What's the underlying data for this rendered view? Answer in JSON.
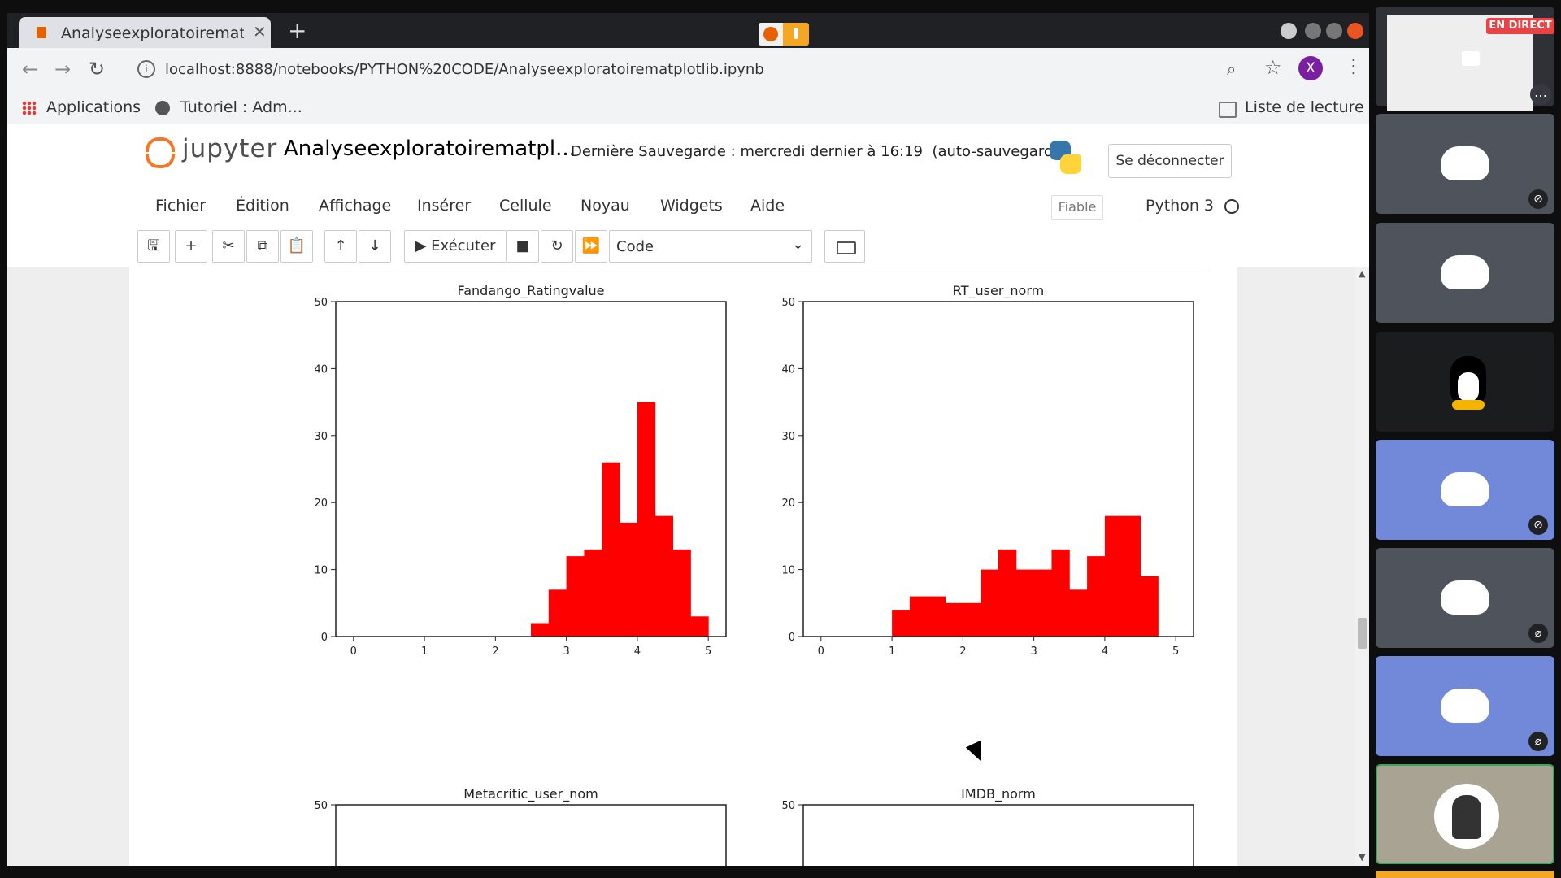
{
  "browser": {
    "tab_title": "Analyseexploratoirematp",
    "url": "localhost:8888/notebooks/PYTHON%20CODE/Analyseexploratoirematplotlib.ipynb",
    "bookmarks": {
      "apps": "Applications",
      "tutorial": "Tutoriel : Adm..."
    },
    "reading_list": "Liste de lecture",
    "profile_initial": "X"
  },
  "jupyter": {
    "brand": "jupyter",
    "notebook_title": "Analyseexploratoirematpl...",
    "save_status": "Dernière Sauvegarde : mercredi dernier à 16:19",
    "autosave": "(auto-sauvegardé)",
    "logout": "Se déconnecter",
    "menu": [
      "Fichier",
      "Édition",
      "Affichage",
      "Insérer",
      "Cellule",
      "Noyau",
      "Widgets",
      "Aide"
    ],
    "trusted": "Fiable",
    "kernel": "Python 3",
    "toolbar": {
      "run": "Exécuter",
      "cell_type": "Code"
    }
  },
  "chart_data": [
    {
      "type": "bar",
      "title": "Fandango_Ratingvalue",
      "xlim": [
        -0.25,
        5.25
      ],
      "ylim": [
        0,
        50
      ],
      "xticks": [
        0,
        1,
        2,
        3,
        4,
        5
      ],
      "yticks": [
        0,
        10,
        20,
        30,
        40,
        50
      ],
      "color": "#ff0000",
      "bins": [
        {
          "x0": 2.5,
          "x1": 2.75,
          "value": 2
        },
        {
          "x0": 2.75,
          "x1": 3.0,
          "value": 7
        },
        {
          "x0": 3.0,
          "x1": 3.25,
          "value": 12
        },
        {
          "x0": 3.25,
          "x1": 3.5,
          "value": 13
        },
        {
          "x0": 3.5,
          "x1": 3.75,
          "value": 26
        },
        {
          "x0": 3.75,
          "x1": 4.0,
          "value": 17
        },
        {
          "x0": 4.0,
          "x1": 4.25,
          "value": 35
        },
        {
          "x0": 4.25,
          "x1": 4.5,
          "value": 18
        },
        {
          "x0": 4.5,
          "x1": 4.75,
          "value": 13
        },
        {
          "x0": 4.75,
          "x1": 5.0,
          "value": 3
        }
      ]
    },
    {
      "type": "bar",
      "title": "RT_user_norm",
      "xlim": [
        -0.25,
        5.25
      ],
      "ylim": [
        0,
        50
      ],
      "xticks": [
        0,
        1,
        2,
        3,
        4,
        5
      ],
      "yticks": [
        0,
        10,
        20,
        30,
        40,
        50
      ],
      "color": "#ff0000",
      "bins": [
        {
          "x0": 1.0,
          "x1": 1.25,
          "value": 4
        },
        {
          "x0": 1.25,
          "x1": 1.5,
          "value": 6
        },
        {
          "x0": 1.5,
          "x1": 1.75,
          "value": 6
        },
        {
          "x0": 1.75,
          "x1": 2.0,
          "value": 5
        },
        {
          "x0": 2.0,
          "x1": 2.25,
          "value": 5
        },
        {
          "x0": 2.25,
          "x1": 2.5,
          "value": 10
        },
        {
          "x0": 2.5,
          "x1": 2.75,
          "value": 13
        },
        {
          "x0": 2.75,
          "x1": 3.0,
          "value": 10
        },
        {
          "x0": 3.0,
          "x1": 3.25,
          "value": 10
        },
        {
          "x0": 3.25,
          "x1": 3.5,
          "value": 13
        },
        {
          "x0": 3.5,
          "x1": 3.75,
          "value": 7
        },
        {
          "x0": 3.75,
          "x1": 4.0,
          "value": 12
        },
        {
          "x0": 4.0,
          "x1": 4.25,
          "value": 18
        },
        {
          "x0": 4.25,
          "x1": 4.5,
          "value": 18
        },
        {
          "x0": 4.5,
          "x1": 4.75,
          "value": 9
        }
      ]
    },
    {
      "type": "bar",
      "title": "Metacritic_user_nom",
      "ylim": [
        0,
        50
      ],
      "yticks": [
        40,
        50
      ],
      "bins": []
    },
    {
      "type": "bar",
      "title": "IMDB_norm",
      "ylim": [
        0,
        50
      ],
      "yticks": [
        40,
        50
      ],
      "bins": []
    }
  ],
  "sidebar": {
    "live_label": "EN DIRECT",
    "colors": {
      "discord_grey": "#4f545c",
      "discord_blurple": "#7289da",
      "dark": "#1b1c1e",
      "avatar_bg": "#a8a393"
    }
  }
}
